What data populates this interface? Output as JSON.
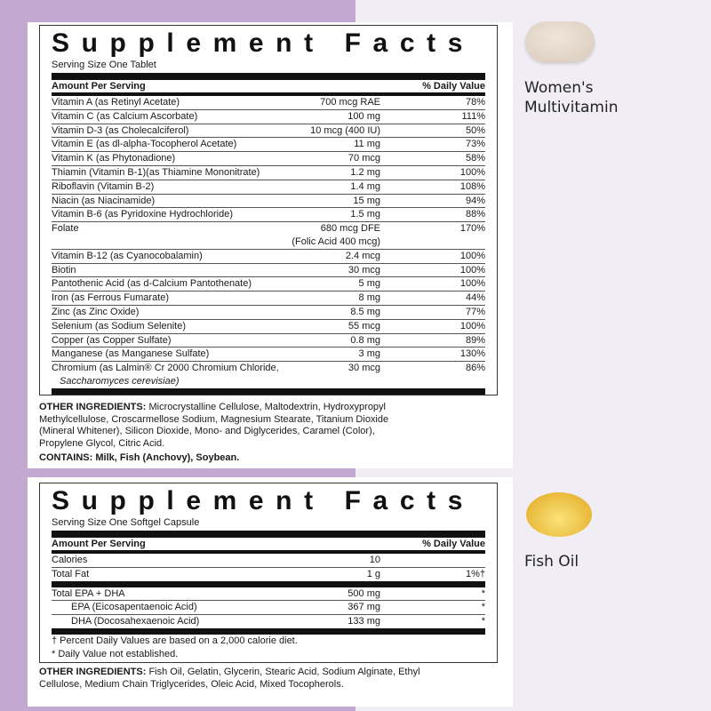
{
  "multivitamin": {
    "title": "Supplement Facts",
    "serving": "Serving Size One Tablet",
    "header_amount": "Amount Per Serving",
    "header_dv": "% Daily Value",
    "rows": [
      {
        "name": "Vitamin A (as Retinyl Acetate)",
        "amount": "700 mcg RAE",
        "dv": "78%"
      },
      {
        "name": "Vitamin C (as Calcium Ascorbate)",
        "amount": "100 mg",
        "dv": "111%"
      },
      {
        "name": "Vitamin D-3 (as Cholecalciferol)",
        "amount": "10 mcg (400 IU)",
        "dv": "50%"
      },
      {
        "name": "Vitamin E (as dl-alpha-Tocopherol Acetate)",
        "amount": "11 mg",
        "dv": "73%"
      },
      {
        "name": "Vitamin K (as Phytonadione)",
        "amount": "70 mcg",
        "dv": "58%"
      },
      {
        "name": "Thiamin (Vitamin B-1)(as Thiamine Mononitrate)",
        "amount": "1.2 mg",
        "dv": "100%"
      },
      {
        "name": "Riboflavin (Vitamin B-2)",
        "amount": "1.4 mg",
        "dv": "108%"
      },
      {
        "name": "Niacin (as Niacinamide)",
        "amount": "15 mg",
        "dv": "94%"
      },
      {
        "name": "Vitamin B-6 (as Pyridoxine Hydrochloride)",
        "amount": "1.5 mg",
        "dv": "88%"
      },
      {
        "name": "Folate",
        "amount": "680 mcg DFE",
        "amount2": "(Folic Acid 400 mcg)",
        "dv": "170%"
      },
      {
        "name": "Vitamin B-12 (as Cyanocobalamin)",
        "amount": "2.4 mcg",
        "dv": "100%"
      },
      {
        "name": "Biotin",
        "amount": "30 mcg",
        "dv": "100%"
      },
      {
        "name": "Pantothenic Acid (as d-Calcium Pantothenate)",
        "amount": "5 mg",
        "dv": "100%"
      },
      {
        "name": "Iron (as Ferrous Fumarate)",
        "amount": "8 mg",
        "dv": "44%"
      },
      {
        "name": "Zinc (as Zinc Oxide)",
        "amount": "8.5 mg",
        "dv": "77%"
      },
      {
        "name": "Selenium (as Sodium Selenite)",
        "amount": "55 mcg",
        "dv": "100%"
      },
      {
        "name": "Copper (as Copper Sulfate)",
        "amount": "0.8 mg",
        "dv": "89%"
      },
      {
        "name": "Manganese (as Manganese Sulfate)",
        "amount": "3 mg",
        "dv": "130%"
      },
      {
        "name": "Chromium (as Lalmin® Cr 2000 Chromium Chloride,",
        "name2": "Saccharomyces cerevisiae)",
        "amount": "30 mcg",
        "dv": "86%"
      }
    ],
    "other_label": "OTHER INGREDIENTS:",
    "other_text": " Microcrystalline Cellulose, Maltodextrin, Hydroxypropyl Methylcellulose, Croscarmellose Sodium, Magnesium Stearate, Titanium Dioxide (Mineral Whitener), Silicon Dioxide, Mono- and Diglycerides, Caramel (Color), Propylene Glycol, Citric Acid.",
    "contains": "CONTAINS: Milk, Fish (Anchovy), Soybean.",
    "product_label_1": "Women's",
    "product_label_2": "Multivitamin"
  },
  "fish_oil": {
    "title": "Supplement Facts",
    "serving": "Serving Size One Softgel Capsule",
    "header_amount": "Amount Per Serving",
    "header_dv": "% Daily Value",
    "rows": [
      {
        "name": "Calories",
        "amount": "10",
        "dv": ""
      },
      {
        "name": "Total Fat",
        "amount": "1 g",
        "dv": "1%†"
      },
      {
        "name": "Total EPA + DHA",
        "amount": "500 mg",
        "dv": "*"
      },
      {
        "name": "EPA (Eicosapentaenoic Acid)",
        "amount": "367 mg",
        "dv": "*"
      },
      {
        "name": "DHA (Docosahexaenoic Acid)",
        "amount": "133 mg",
        "dv": "*"
      }
    ],
    "footnote_1": "† Percent Daily Values are based on a 2,000 calorie diet.",
    "footnote_2": "* Daily Value not established.",
    "other_label": "OTHER INGREDIENTS:",
    "other_text": " Fish Oil, Gelatin, Glycerin, Stearic Acid, Sodium Alginate, Ethyl Cellulose, Medium Chain Triglycerides, Oleic Acid, Mixed Tocopherols.",
    "product_label": "Fish Oil"
  },
  "colors": {
    "left_bg": "#c3a8d2",
    "right_bg": "#f1edf5",
    "tablet": "#e6dacd",
    "softgel": "#f0c445"
  }
}
